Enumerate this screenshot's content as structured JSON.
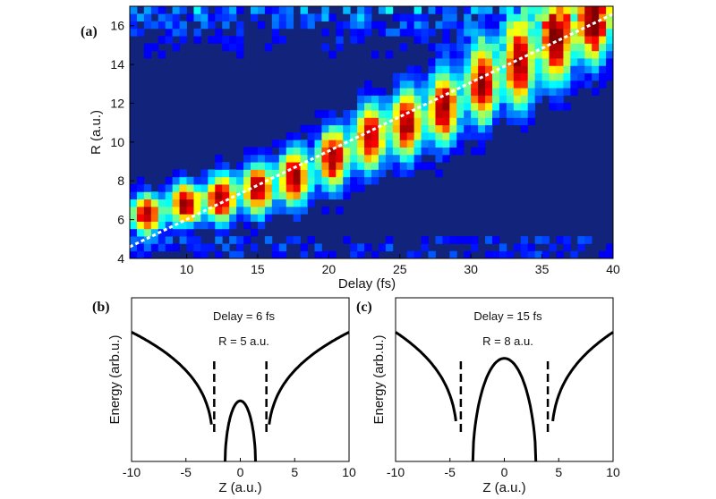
{
  "chart_data": [
    {
      "id": "a",
      "panel_label": "(a)",
      "type": "heatmap",
      "xlabel": "Delay (fs)",
      "ylabel": "R (a.u.)",
      "xlim": [
        6,
        40
      ],
      "ylim": [
        4,
        17
      ],
      "x_ticks": [
        "10",
        "15",
        "20",
        "25",
        "30",
        "35",
        "40"
      ],
      "y_ticks": [
        "4",
        "6",
        "8",
        "10",
        "12",
        "14",
        "16"
      ],
      "colormap": [
        "#00008f",
        "#0000ff",
        "#00ffff",
        "#ffff00",
        "#ff0000",
        "#800000"
      ],
      "background_color": "#11237a",
      "ridges": [
        {
          "delay": 7.2,
          "r_center": 6.3,
          "r_width": 0.9
        },
        {
          "delay": 9.9,
          "r_center": 6.8,
          "r_width": 1.0
        },
        {
          "delay": 12.4,
          "r_center": 7.1,
          "r_width": 1.1
        },
        {
          "delay": 15.0,
          "r_center": 7.6,
          "r_width": 1.2
        },
        {
          "delay": 17.6,
          "r_center": 8.2,
          "r_width": 1.3
        },
        {
          "delay": 20.3,
          "r_center": 9.2,
          "r_width": 1.4
        },
        {
          "delay": 22.9,
          "r_center": 10.3,
          "r_width": 1.5
        },
        {
          "delay": 25.5,
          "r_center": 11.0,
          "r_width": 1.6
        },
        {
          "delay": 28.1,
          "r_center": 11.8,
          "r_width": 1.7
        },
        {
          "delay": 30.8,
          "r_center": 13.0,
          "r_width": 1.8
        },
        {
          "delay": 33.4,
          "r_center": 14.0,
          "r_width": 1.9
        },
        {
          "delay": 36.0,
          "r_center": 15.2,
          "r_width": 2.0
        },
        {
          "delay": 38.6,
          "r_center": 16.3,
          "r_width": 2.0
        }
      ],
      "guide_line": {
        "style": "dashed",
        "color": "#ffffff",
        "from": [
          6,
          4.6
        ],
        "to": [
          40,
          16.6
        ]
      }
    },
    {
      "id": "b",
      "panel_label": "(b)",
      "type": "line",
      "xlabel": "Z (a.u.)",
      "ylabel": "Energy (arb.u.)",
      "xlim": [
        -10,
        10
      ],
      "ylim": [
        0,
        1
      ],
      "x_ticks": [
        "-10",
        "-5",
        "0",
        "5",
        "10"
      ],
      "annotations": [
        "Delay = 6 fs",
        "R = 5 a.u."
      ],
      "curve": {
        "outer_ends_y": 0.79,
        "outer_asymptote_z": 2.5,
        "barrier_peak_y": 0.37,
        "barrier_half_width": 1.4
      },
      "dashed_lines_z": [
        -2.4,
        2.4
      ],
      "dashed_lines_ylim": [
        0.18,
        0.63
      ]
    },
    {
      "id": "c",
      "panel_label": "(c)",
      "type": "line",
      "xlabel": "Z (a.u.)",
      "ylabel": "Energy (arb.u.)",
      "xlim": [
        -10,
        10
      ],
      "ylim": [
        0,
        1
      ],
      "x_ticks": [
        "-10",
        "-5",
        "0",
        "5",
        "10"
      ],
      "annotations": [
        "Delay = 15 fs",
        "R = 8 a.u."
      ],
      "curve": {
        "outer_ends_y": 0.79,
        "outer_asymptote_z": 4.3,
        "barrier_peak_y": 0.63,
        "barrier_half_width": 2.9
      },
      "dashed_lines_z": [
        -4.0,
        4.0
      ],
      "dashed_lines_ylim": [
        0.18,
        0.63
      ]
    }
  ]
}
